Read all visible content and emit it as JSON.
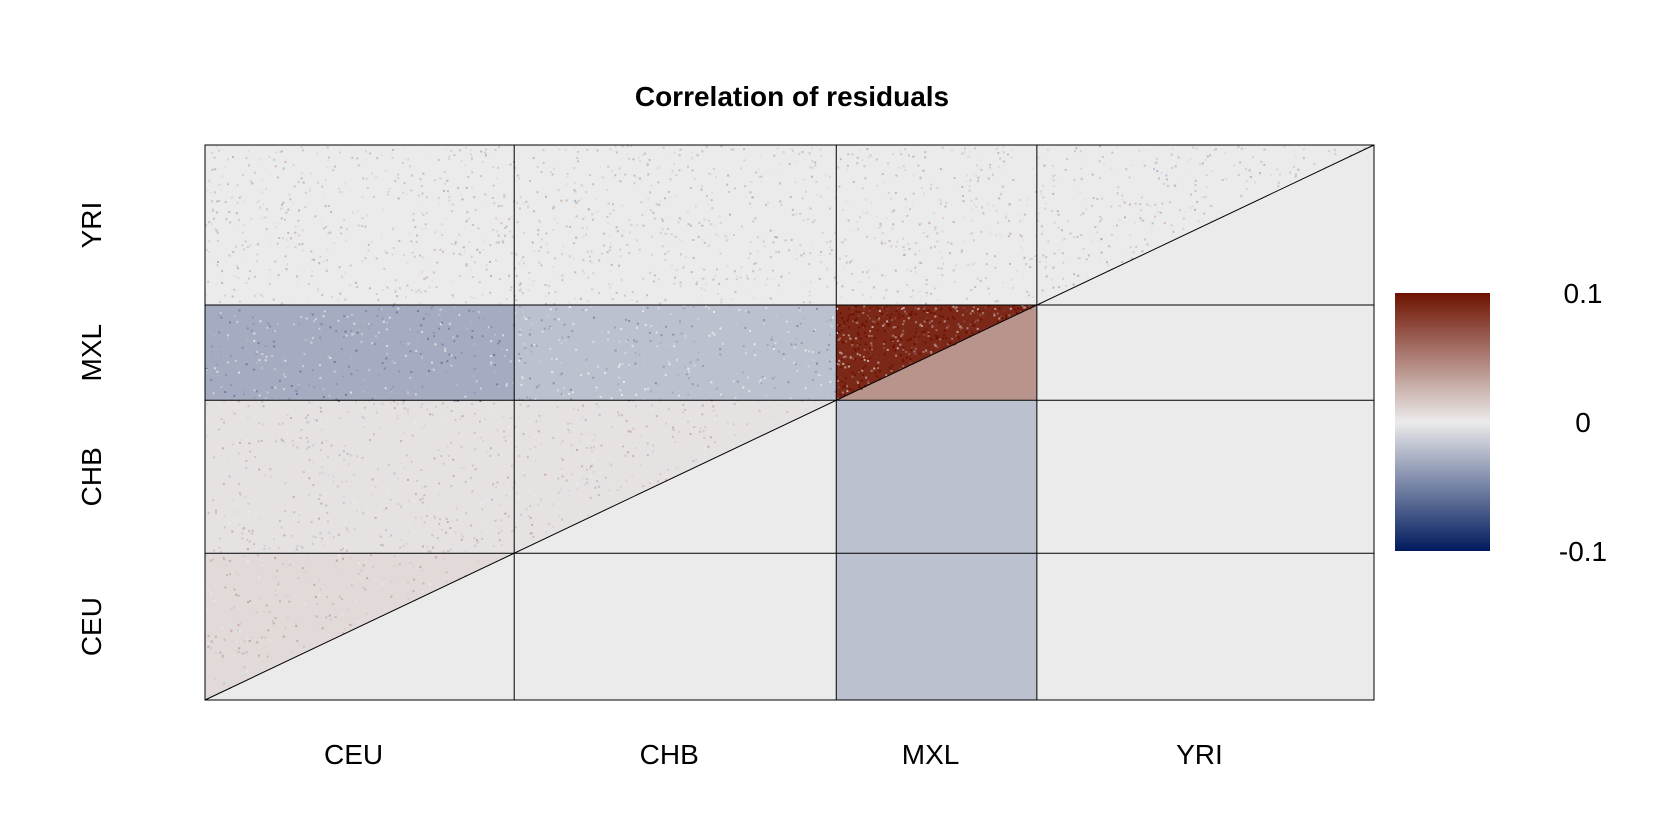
{
  "chart_data": {
    "type": "heatmap",
    "title": "Correlation of residuals",
    "xlabel": "",
    "ylabel": "",
    "categories": [
      "CEU",
      "CHB",
      "MXL",
      "YRI"
    ],
    "group_fractions": [
      0.2645,
      0.2755,
      0.1716,
      0.2884
    ],
    "legend": {
      "position": "right",
      "range": [
        -0.1,
        0.1
      ],
      "tick_labels": [
        "0.1",
        "0",
        "-0.1"
      ],
      "tick_values": [
        0.1,
        0,
        -0.1
      ],
      "colors": [
        "#001a5e",
        "#ebebeb",
        "#6e1200"
      ]
    },
    "upper_triangle": "per-sample residual correlations (noise)",
    "lower_triangle": "block means",
    "block_means": [
      [
        0.0,
        0.0,
        -0.02,
        0.0
      ],
      [
        0.0,
        0.0,
        -0.02,
        0.0
      ],
      [
        -0.02,
        -0.02,
        0.04,
        0.0
      ],
      [
        0.0,
        0.0,
        0.0,
        0.0
      ]
    ],
    "upper_block_pattern": [
      [
        0.008,
        0.004,
        -0.03,
        0.0
      ],
      [
        0.004,
        0.004,
        -0.02,
        0.0
      ],
      [
        -0.03,
        -0.02,
        0.09,
        0.0
      ],
      [
        0.0,
        0.0,
        0.0,
        0.0
      ]
    ],
    "grid": true
  },
  "colors": {
    "background": "#ffffff",
    "neutral": "#ebebeb",
    "border": "#000000"
  }
}
